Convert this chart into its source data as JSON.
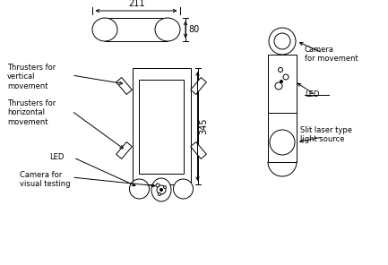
{
  "bg_color": "#ffffff",
  "line_color": "#000000",
  "figsize": [
    4.33,
    2.96
  ],
  "dpi": 100,
  "labels": {
    "thrusters_vertical": "Thrusters for\nvertical\nmovement",
    "thrusters_horizontal": "Thrusters for\nhorizontal\nmovement",
    "led_bottom": "LED",
    "camera_visual": "Camera for\nvisual testing",
    "camera_movement": "Camera\nfor movement",
    "led_side": "LED",
    "slit_laser": "Slit laser type\nlight source",
    "dim_211": "211",
    "dim_80": "80",
    "dim_345": "345"
  }
}
